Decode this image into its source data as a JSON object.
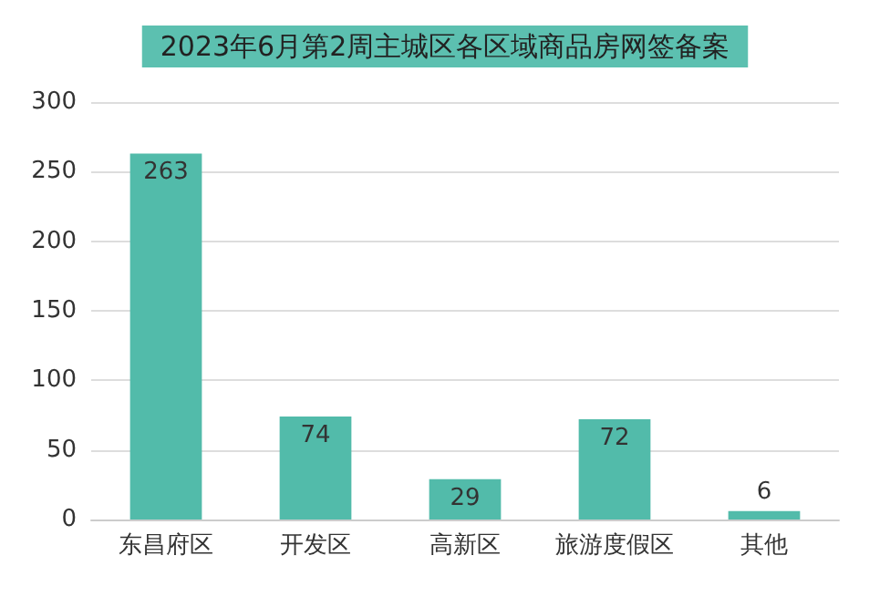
{
  "chart_data": {
    "type": "bar",
    "title": "2023年6月第2周主城区各区域商品房网签备案",
    "categories": [
      "东昌府区",
      "开发区",
      "高新区",
      "旅游度假区",
      "其他"
    ],
    "values": [
      263,
      74,
      29,
      72,
      6
    ],
    "color": "#52bbaa",
    "ylim": [
      0,
      300
    ],
    "yticks": [
      0,
      50,
      100,
      150,
      200,
      250,
      300
    ],
    "grid": "y",
    "data_labels": true
  }
}
